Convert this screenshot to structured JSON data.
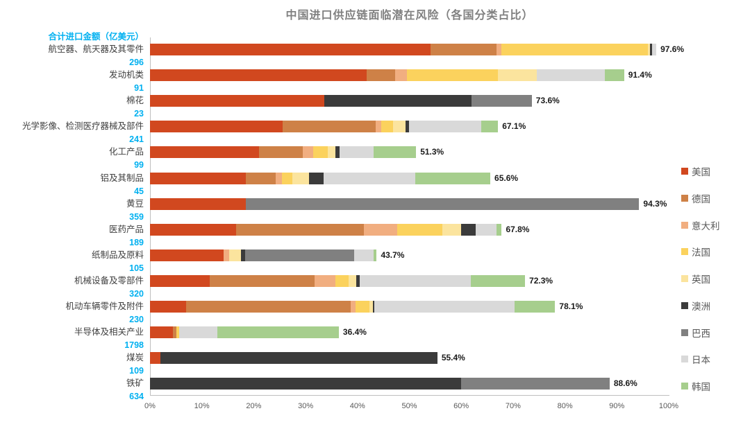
{
  "title": "中国进口供应链面临潜在风险（各国分类占比）",
  "amount_header": "合计进口金额（亿美元）",
  "chart_data": {
    "type": "bar",
    "orientation": "horizontal",
    "stacked": true,
    "xlim": [
      0,
      100
    ],
    "x_tick_labels": [
      "0%",
      "10%",
      "20%",
      "30%",
      "40%",
      "50%",
      "60%",
      "70%",
      "80%",
      "90%",
      "100%"
    ],
    "legend_position": "right",
    "grid": false,
    "series_names": [
      "美国",
      "德国",
      "意大利",
      "法国",
      "英国",
      "澳洲",
      "巴西",
      "日本",
      "韩国"
    ],
    "series_colors": {
      "美国": "#D1481F",
      "德国": "#CE8147",
      "意大利": "#F1AE80",
      "法国": "#FBD25D",
      "英国": "#FBE49E",
      "澳洲": "#3B3B3B",
      "巴西": "#808080",
      "日本": "#D9D9D9",
      "韩国": "#A6CE8D"
    },
    "categories": [
      {
        "label": "航空器、航天器及其零件",
        "import_amount": "296",
        "total_pct_label": "97.6%",
        "segments": {
          "美国": 54.1,
          "德国": 12.7,
          "意大利": 1.0,
          "法国": 28.2,
          "英国": 0.4,
          "澳洲": 0.4,
          "日本": 0.8
        }
      },
      {
        "label": "发动机类",
        "import_amount": "91",
        "total_pct_label": "91.4%",
        "segments": {
          "美国": 41.8,
          "德国": 5.4,
          "意大利": 2.4,
          "法国": 17.5,
          "英国": 7.5,
          "日本": 13.1,
          "韩国": 3.7
        }
      },
      {
        "label": "棉花",
        "import_amount": "23",
        "total_pct_label": "73.6%",
        "segments": {
          "美国": 33.6,
          "澳洲": 28.4,
          "巴西": 11.6
        }
      },
      {
        "label": "光学影像、检测医疗器械及部件",
        "import_amount": "241",
        "total_pct_label": "67.1%",
        "segments": {
          "美国": 25.6,
          "德国": 17.9,
          "意大利": 1.1,
          "法国": 2.3,
          "英国": 2.4,
          "澳洲": 0.6,
          "日本": 13.9,
          "韩国": 3.3
        }
      },
      {
        "label": "化工产品",
        "import_amount": "99",
        "total_pct_label": "51.3%",
        "segments": {
          "美国": 21.0,
          "德国": 8.5,
          "意大利": 2.0,
          "法国": 2.8,
          "英国": 1.5,
          "澳洲": 0.7,
          "日本": 6.6,
          "韩国": 8.2
        }
      },
      {
        "label": "铝及其制品",
        "import_amount": "45",
        "total_pct_label": "65.6%",
        "segments": {
          "美国": 18.5,
          "德国": 5.7,
          "意大利": 1.3,
          "法国": 2.0,
          "英国": 3.2,
          "澳洲": 2.8,
          "日本": 17.7,
          "韩国": 14.4
        }
      },
      {
        "label": "黄豆",
        "import_amount": "359",
        "total_pct_label": "94.3%",
        "segments": {
          "美国": 18.5,
          "巴西": 75.8
        }
      },
      {
        "label": "医药产品",
        "import_amount": "189",
        "total_pct_label": "67.8%",
        "segments": {
          "美国": 16.6,
          "德国": 24.6,
          "意大利": 6.5,
          "法国": 8.6,
          "英国": 3.7,
          "澳洲": 2.8,
          "日本": 4.0,
          "韩国": 1.0
        }
      },
      {
        "label": "纸制品及原料",
        "import_amount": "105",
        "total_pct_label": "43.7%",
        "segments": {
          "美国": 14.2,
          "意大利": 1.1,
          "英国": 2.2,
          "澳洲": 0.9,
          "巴西": 21.0,
          "日本": 3.7,
          "韩国": 0.6
        }
      },
      {
        "label": "机械设备及零部件",
        "import_amount": "320",
        "total_pct_label": "72.3%",
        "segments": {
          "美国": 11.5,
          "德国": 20.2,
          "意大利": 4.0,
          "法国": 2.6,
          "英国": 1.5,
          "澳洲": 0.6,
          "日本": 21.5,
          "韩国": 10.4
        }
      },
      {
        "label": "机动车辆零件及附件",
        "import_amount": "230",
        "total_pct_label": "78.1%",
        "segments": {
          "美国": 7.0,
          "德国": 31.7,
          "意大利": 0.9,
          "法国": 2.7,
          "英国": 0.7,
          "澳洲": 0.3,
          "日本": 27.0,
          "韩国": 7.8
        }
      },
      {
        "label": "半导体及相关产业",
        "import_amount": "1798",
        "total_pct_label": "36.4%",
        "segments": {
          "美国": 4.4,
          "德国": 0.7,
          "法国": 0.5,
          "日本": 7.4,
          "韩国": 23.4
        }
      },
      {
        "label": "煤炭",
        "import_amount": "109",
        "total_pct_label": "55.4%",
        "segments": {
          "美国": 2.0,
          "澳洲": 53.4
        }
      },
      {
        "label": "铁矿",
        "import_amount": "634",
        "total_pct_label": "88.6%",
        "segments": {
          "澳洲": 60.0,
          "巴西": 28.6
        }
      }
    ]
  }
}
